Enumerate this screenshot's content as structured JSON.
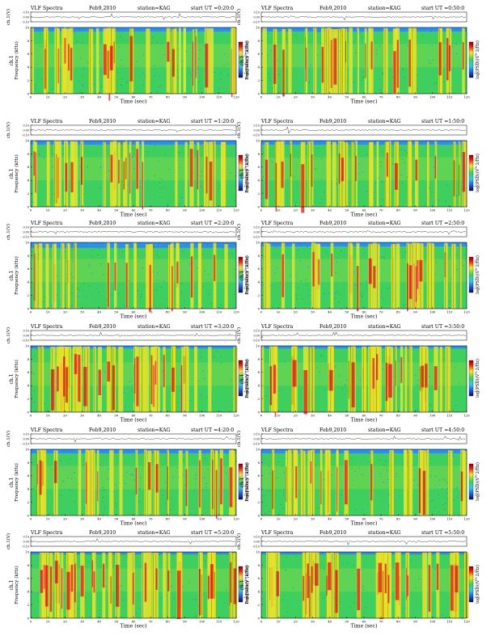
{
  "chart_data": [
    {
      "type": "heatmap",
      "title": "VLF Spectra",
      "date": "Feb9,2010",
      "station": "station=KAG",
      "start_label": "start UT =0:20:0",
      "xlabel": "Time (sec)",
      "ylabel": "Frequency (kHz)",
      "channel_label": "ch.1",
      "trace_label": "ch.1(V)",
      "colorbar_label": "log(PSD)(V^2/Hz)",
      "xlim": [
        0,
        120
      ],
      "ylim": [
        0,
        10
      ],
      "xticks": [
        "0",
        "10",
        "20",
        "30",
        "40",
        "50",
        "60",
        "70",
        "80",
        "90",
        "100",
        "110",
        "120"
      ],
      "yticks": [
        "0",
        "2",
        "4",
        "6",
        "8",
        "10"
      ],
      "trace_yticks": [
        "-0.10",
        "0.00",
        "0.10"
      ],
      "colorbar_ticks": [
        "-1",
        "-2",
        "-3",
        "-4"
      ],
      "intensity": "medium"
    },
    {
      "type": "heatmap",
      "title": "VLF Spectra",
      "date": "Feb9,2010",
      "station": "station=KAG",
      "start_label": "start UT =0:50:0",
      "xlabel": "Time (sec)",
      "ylabel": "Frequency (kHz)",
      "channel_label": "ch.1",
      "trace_label": "ch.1(V)",
      "colorbar_label": "log(PSD)(V^2/Hz)",
      "xlim": [
        0,
        120
      ],
      "ylim": [
        0,
        10
      ],
      "xticks": [
        "0",
        "10",
        "20",
        "30",
        "40",
        "50",
        "60",
        "70",
        "80",
        "90",
        "100",
        "110",
        "120"
      ],
      "yticks": [
        "0",
        "2",
        "4",
        "6",
        "8",
        "10"
      ],
      "trace_yticks": [
        "-0.10",
        "0.00",
        "0.10"
      ],
      "colorbar_ticks": [
        "-1",
        "-2",
        "-3",
        "-4"
      ],
      "intensity": "medium"
    },
    {
      "type": "heatmap",
      "title": "VLF Spectra",
      "date": "Feb9,2010",
      "station": "station=KAG",
      "start_label": "start UT =1:20:0",
      "xlabel": "Time (sec)",
      "ylabel": "Frequency (kHz)",
      "channel_label": "ch.1",
      "trace_label": "ch.1(V)",
      "colorbar_label": "log(PSD)(V^2/Hz)",
      "xlim": [
        0,
        120
      ],
      "ylim": [
        0,
        10
      ],
      "xticks": [
        "0",
        "10",
        "20",
        "30",
        "40",
        "50",
        "60",
        "70",
        "80",
        "90",
        "100",
        "110",
        "120"
      ],
      "yticks": [
        "0",
        "2",
        "4",
        "6",
        "8",
        "10"
      ],
      "trace_yticks": [
        "-0.10",
        "0.00",
        "0.10"
      ],
      "colorbar_ticks": [
        "-1",
        "-2",
        "-3",
        "-4"
      ],
      "intensity": "medium"
    },
    {
      "type": "heatmap",
      "title": "VLF Spectra",
      "date": "Feb9,2010",
      "station": "station=KAG",
      "start_label": "start UT =1:50:0",
      "xlabel": "Time (sec)",
      "ylabel": "Frequency (kHz)",
      "channel_label": "ch.1",
      "trace_label": "ch.1(V)",
      "colorbar_label": "log(PSD)(V^2/Hz)",
      "xlim": [
        0,
        120
      ],
      "ylim": [
        0,
        10
      ],
      "xticks": [
        "0",
        "10",
        "20",
        "30",
        "40",
        "50",
        "60",
        "70",
        "80",
        "90",
        "100",
        "110",
        "120"
      ],
      "yticks": [
        "0",
        "2",
        "4",
        "6",
        "8",
        "10"
      ],
      "trace_yticks": [
        "-0.10",
        "0.00",
        "0.10"
      ],
      "colorbar_ticks": [
        "-1",
        "-2",
        "-3",
        "-4"
      ],
      "intensity": "medium"
    },
    {
      "type": "heatmap",
      "title": "VLF Spectra",
      "date": "Feb9,2010",
      "station": "station=KAG",
      "start_label": "start UT =2:20:0",
      "xlabel": "Time (sec)",
      "ylabel": "Frequency (kHz)",
      "channel_label": "ch.1",
      "trace_label": "ch.1(V)",
      "colorbar_label": "log(PSD)(V^2/Hz)",
      "xlim": [
        0,
        120
      ],
      "ylim": [
        0,
        10
      ],
      "xticks": [
        "0",
        "10",
        "20",
        "30",
        "40",
        "50",
        "60",
        "70",
        "80",
        "90",
        "100",
        "110",
        "120"
      ],
      "yticks": [
        "0",
        "2",
        "4",
        "6",
        "8",
        "10"
      ],
      "trace_yticks": [
        "-0.10",
        "0.00",
        "0.10"
      ],
      "colorbar_ticks": [
        "-1",
        "-2",
        "-3",
        "-4"
      ],
      "intensity": "low"
    },
    {
      "type": "heatmap",
      "title": "VLF Spectra",
      "date": "Feb9,2010",
      "station": "station=KAG",
      "start_label": "start UT =2:50:0",
      "xlabel": "Time (sec)",
      "ylabel": "Frequency (kHz)",
      "channel_label": "ch.1",
      "trace_label": "ch.1(V)",
      "colorbar_label": "log(PSD)(V^2/Hz)",
      "xlim": [
        0,
        120
      ],
      "ylim": [
        0,
        10
      ],
      "xticks": [
        "0",
        "10",
        "20",
        "30",
        "40",
        "50",
        "60",
        "70",
        "80",
        "90",
        "100",
        "110",
        "120"
      ],
      "yticks": [
        "0",
        "2",
        "4",
        "6",
        "8",
        "10"
      ],
      "trace_yticks": [
        "-0.10",
        "0.00",
        "0.10"
      ],
      "colorbar_ticks": [
        "-1",
        "-2",
        "-3",
        "-4"
      ],
      "intensity": "medium"
    },
    {
      "type": "heatmap",
      "title": "VLF Spectra",
      "date": "Feb9,2010",
      "station": "station=KAG",
      "start_label": "start UT =3:20:0",
      "xlabel": "Time (sec)",
      "ylabel": "Frequency (kHz)",
      "channel_label": "ch.1",
      "trace_label": "ch.1(V)",
      "colorbar_label": "log(PSD)(V^2/Hz)",
      "xlim": [
        0,
        120
      ],
      "ylim": [
        0,
        10
      ],
      "xticks": [
        "0",
        "10",
        "20",
        "30",
        "40",
        "50",
        "60",
        "70",
        "80",
        "90",
        "100",
        "110",
        "120"
      ],
      "yticks": [
        "0",
        "2",
        "4",
        "6",
        "8",
        "10"
      ],
      "trace_yticks": [
        "-0.10",
        "0.00",
        "0.10"
      ],
      "colorbar_ticks": [
        "-1",
        "-2",
        "-3",
        "-4"
      ],
      "intensity": "high"
    },
    {
      "type": "heatmap",
      "title": "VLF Spectra",
      "date": "Feb9,2010",
      "station": "station=KAG",
      "start_label": "start UT =3:50:0",
      "xlabel": "Time (sec)",
      "ylabel": "Frequency (kHz)",
      "channel_label": "ch.1",
      "trace_label": "ch.1(V)",
      "colorbar_label": "log(PSD)(V^2/Hz)",
      "xlim": [
        0,
        120
      ],
      "ylim": [
        0,
        10
      ],
      "xticks": [
        "0",
        "10",
        "20",
        "30",
        "40",
        "50",
        "60",
        "70",
        "80",
        "90",
        "100",
        "110",
        "120"
      ],
      "yticks": [
        "0",
        "2",
        "4",
        "6",
        "8",
        "10"
      ],
      "trace_yticks": [
        "-0.10",
        "0.00",
        "0.10"
      ],
      "colorbar_ticks": [
        "-1",
        "-2",
        "-3",
        "-4"
      ],
      "intensity": "high"
    },
    {
      "type": "heatmap",
      "title": "VLF Spectra",
      "date": "Feb9,2010",
      "station": "station=KAG",
      "start_label": "start UT =4:20:0",
      "xlabel": "Time (sec)",
      "ylabel": "Frequency (kHz)",
      "channel_label": "ch.1",
      "trace_label": "ch.1(V)",
      "colorbar_label": "log(PSD)(V^2/Hz)",
      "xlim": [
        0,
        120
      ],
      "ylim": [
        0,
        10
      ],
      "xticks": [
        "0",
        "10",
        "20",
        "30",
        "40",
        "50",
        "60",
        "70",
        "80",
        "90",
        "100",
        "110",
        "120"
      ],
      "yticks": [
        "0",
        "2",
        "4",
        "6",
        "8",
        "10"
      ],
      "trace_yticks": [
        "-0.10",
        "0.00",
        "0.10"
      ],
      "colorbar_ticks": [
        "-1",
        "-2",
        "-3",
        "-4"
      ],
      "intensity": "medium"
    },
    {
      "type": "heatmap",
      "title": "VLF Spectra",
      "date": "Feb9,2010",
      "station": "station=KAG",
      "start_label": "start UT =4:50:0",
      "xlabel": "Time (sec)",
      "ylabel": "Frequency (kHz)",
      "channel_label": "ch.1",
      "trace_label": "ch.1(V)",
      "colorbar_label": "log(PSD)(V^2/Hz)",
      "xlim": [
        0,
        120
      ],
      "ylim": [
        0,
        10
      ],
      "xticks": [
        "0",
        "10",
        "20",
        "30",
        "40",
        "50",
        "60",
        "70",
        "80",
        "90",
        "100",
        "110",
        "120"
      ],
      "yticks": [
        "0",
        "2",
        "4",
        "6",
        "8",
        "10"
      ],
      "trace_yticks": [
        "-0.10",
        "0.00",
        "0.10"
      ],
      "colorbar_ticks": [
        "-1",
        "-2",
        "-3",
        "-4"
      ],
      "intensity": "medium"
    },
    {
      "type": "heatmap",
      "title": "VLF Spectra",
      "date": "Feb9,2010",
      "station": "station=KAG",
      "start_label": "start UT =5:20:0",
      "xlabel": "Time (sec)",
      "ylabel": "Frequency (kHz)",
      "channel_label": "ch.1",
      "trace_label": "ch.1(V)",
      "colorbar_label": "log(PSD)(V^2/Hz)",
      "xlim": [
        0,
        120
      ],
      "ylim": [
        0,
        10
      ],
      "xticks": [
        "0",
        "10",
        "20",
        "30",
        "40",
        "50",
        "60",
        "70",
        "80",
        "90",
        "100",
        "110",
        "120"
      ],
      "yticks": [
        "0",
        "2",
        "4",
        "6",
        "8",
        "10"
      ],
      "trace_yticks": [
        "-0.10",
        "0.00",
        "0.10"
      ],
      "colorbar_ticks": [
        "-1",
        "-2",
        "-3",
        "-4"
      ],
      "intensity": "high"
    },
    {
      "type": "heatmap",
      "title": "VLF Spectra",
      "date": "Feb9,2010",
      "station": "station=KAG",
      "start_label": "start UT =5:50:0",
      "xlabel": "Time (sec)",
      "ylabel": "Frequency (kHz)",
      "channel_label": "ch.1",
      "trace_label": "ch.1(V)",
      "colorbar_label": "log(PSD)(V^2/Hz)",
      "xlim": [
        0,
        120
      ],
      "ylim": [
        0,
        10
      ],
      "xticks": [
        "0",
        "10",
        "20",
        "30",
        "40",
        "50",
        "60",
        "70",
        "80",
        "90",
        "100",
        "110",
        "120"
      ],
      "yticks": [
        "0",
        "2",
        "4",
        "6",
        "8",
        "10"
      ],
      "trace_yticks": [
        "-0.10",
        "0.00",
        "0.10"
      ],
      "colorbar_ticks": [
        "-1",
        "-2",
        "-3",
        "-4"
      ],
      "intensity": "high"
    }
  ]
}
